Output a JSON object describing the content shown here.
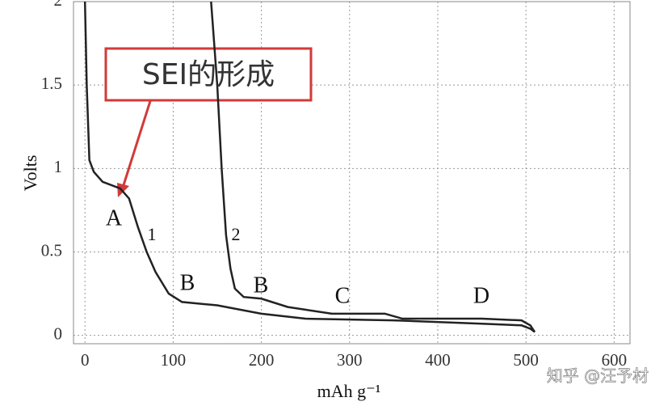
{
  "chart_data": {
    "type": "line",
    "x_label": "mAh g⁻¹",
    "y_label": "Volts",
    "xlim": [
      -13,
      618
    ],
    "ylim": [
      -0.05,
      2
    ],
    "xticks": [
      0,
      100,
      200,
      300,
      400,
      500,
      600
    ],
    "yticks": [
      0,
      0.5,
      1,
      1.5,
      2
    ],
    "grid": true,
    "series": [
      {
        "name": "1",
        "color": "#222222",
        "x": [
          0,
          2,
          5,
          10,
          20,
          40,
          50,
          60,
          70,
          80,
          95,
          110,
          150,
          200,
          250,
          350,
          450,
          495,
          505,
          510
        ],
        "values": [
          2,
          1.5,
          1.05,
          0.98,
          0.92,
          0.88,
          0.82,
          0.65,
          0.5,
          0.38,
          0.25,
          0.2,
          0.18,
          0.13,
          0.1,
          0.09,
          0.07,
          0.06,
          0.04,
          0.02
        ]
      },
      {
        "name": "2",
        "color": "#222222",
        "x": [
          143,
          150,
          155,
          160,
          165,
          170,
          180,
          200,
          230,
          280,
          340,
          360,
          450,
          495,
          505,
          510
        ],
        "values": [
          2,
          1.5,
          1.0,
          0.6,
          0.4,
          0.28,
          0.23,
          0.22,
          0.17,
          0.13,
          0.13,
          0.1,
          0.1,
          0.09,
          0.06,
          0.02
        ]
      }
    ],
    "annotations": [
      "A",
      "B",
      "B",
      "C",
      "D"
    ],
    "callout": "SEI的形成",
    "watermark": "知乎 @汪予材"
  }
}
